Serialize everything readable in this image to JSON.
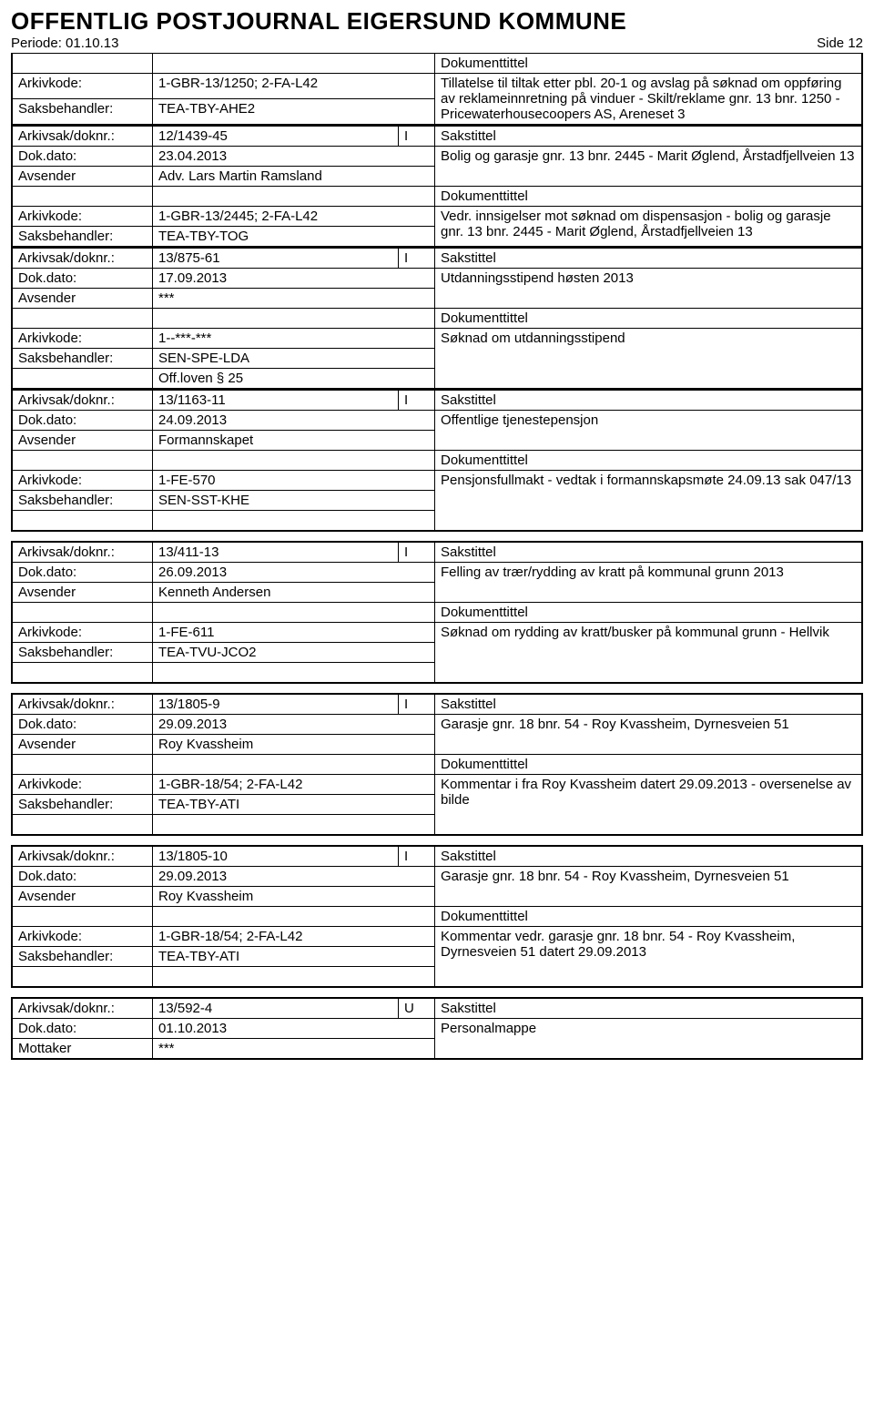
{
  "title": "OFFENTLIG POSTJOURNAL EIGERSUND KOMMUNE",
  "period_label": "Periode: 01.10.13",
  "page_label": "Side 12",
  "labels": {
    "arkivkode": "Arkivkode:",
    "saksbehandler": "Saksbehandler:",
    "arkivsak": "Arkivsak/doknr.:",
    "dokdato": "Dok.dato:",
    "avsender": "Avsender",
    "mottaker": "Mottaker",
    "sakstittel": "Sakstittel",
    "dokumenttittel": "Dokumenttittel"
  },
  "blocks": [
    {
      "top_rows": [],
      "arkivkode": "1-GBR-13/1250; 2-FA-L42",
      "saksbehandler": "TEA-TBY-AHE2",
      "doktext": "Tillatelse til tiltak etter pbl. 20-1 og avslag på søknad om oppføring av reklameinnretning på vinduer - Skilt/reklame gnr. 13 bnr. 1250 - Pricewaterhousecoopers AS, Areneset 3",
      "extra_rows": []
    },
    {
      "arkivsak": "12/1439-45",
      "doctype": "I",
      "dokdato": "23.04.2013",
      "party_label": "Avsender",
      "party_value": "Adv. Lars Martin Ramsland",
      "sakstittel": "Bolig og garasje gnr. 13 bnr. 2445 - Marit Øglend, Årstadfjellveien 13",
      "arkivkode": "1-GBR-13/2445; 2-FA-L42",
      "saksbehandler": "TEA-TBY-TOG",
      "doktext": "Vedr. innsigelser mot søknad om dispensasjon - bolig og garasje gnr. 13 bnr. 2445 - Marit Øglend, Årstadfjellveien 13",
      "extra_rows": []
    },
    {
      "arkivsak": "13/875-61",
      "doctype": "I",
      "dokdato": "17.09.2013",
      "party_label": "Avsender",
      "party_value": "***",
      "sakstittel": "Utdanningsstipend høsten 2013",
      "arkivkode": "1--***-***",
      "saksbehandler": "SEN-SPE-LDA",
      "doktext": "Søknad om utdanningsstipend",
      "extra_rows": [
        {
          "label": "",
          "value": "Off.loven § 25"
        }
      ]
    },
    {
      "arkivsak": "13/1163-11",
      "doctype": "I",
      "dokdato": "24.09.2013",
      "party_label": "Avsender",
      "party_value": "Formannskapet",
      "sakstittel": "Offentlige tjenestepensjon",
      "arkivkode": "1-FE-570",
      "saksbehandler": "SEN-SST-KHE",
      "doktext": "Pensjonsfullmakt - vedtak i formannskapsmøte 24.09.13 sak 047/13",
      "extra_rows": [
        {
          "label": "",
          "value": ""
        }
      ]
    },
    {
      "arkivsak": "13/411-13",
      "doctype": "I",
      "dokdato": "26.09.2013",
      "party_label": "Avsender",
      "party_value": "Kenneth Andersen",
      "sakstittel": "Felling av trær/rydding av kratt på kommunal grunn 2013",
      "arkivkode": "1-FE-611",
      "saksbehandler": "TEA-TVU-JCO2",
      "doktext": "Søknad om rydding av kratt/busker på kommunal grunn - Hellvik",
      "extra_rows": [
        {
          "label": "",
          "value": ""
        }
      ]
    },
    {
      "arkivsak": "13/1805-9",
      "doctype": "I",
      "dokdato": "29.09.2013",
      "party_label": "Avsender",
      "party_value": "Roy Kvassheim",
      "sakstittel": "Garasje gnr. 18 bnr. 54 - Roy Kvassheim, Dyrnesveien 51",
      "arkivkode": "1-GBR-18/54; 2-FA-L42",
      "saksbehandler": "TEA-TBY-ATI",
      "doktext": "Kommentar i fra Roy Kvassheim datert 29.09.2013 - oversenelse av bilde",
      "extra_rows": [
        {
          "label": "",
          "value": ""
        }
      ]
    },
    {
      "arkivsak": "13/1805-10",
      "doctype": "I",
      "dokdato": "29.09.2013",
      "party_label": "Avsender",
      "party_value": "Roy Kvassheim",
      "sakstittel": "Garasje gnr. 18 bnr. 54 - Roy Kvassheim, Dyrnesveien 51",
      "arkivkode": "1-GBR-18/54; 2-FA-L42",
      "saksbehandler": "TEA-TBY-ATI",
      "doktext": "Kommentar vedr. garasje gnr. 18 bnr. 54 - Roy Kvassheim, Dyrnesveien 51 datert 29.09.2013",
      "extra_rows": [
        {
          "label": "",
          "value": ""
        }
      ]
    },
    {
      "arkivsak": "13/592-4",
      "doctype": "U",
      "dokdato": "01.10.2013",
      "party_label": "Mottaker",
      "party_value": "***",
      "sakstittel": "Personalmappe",
      "no_bottom": true
    }
  ]
}
